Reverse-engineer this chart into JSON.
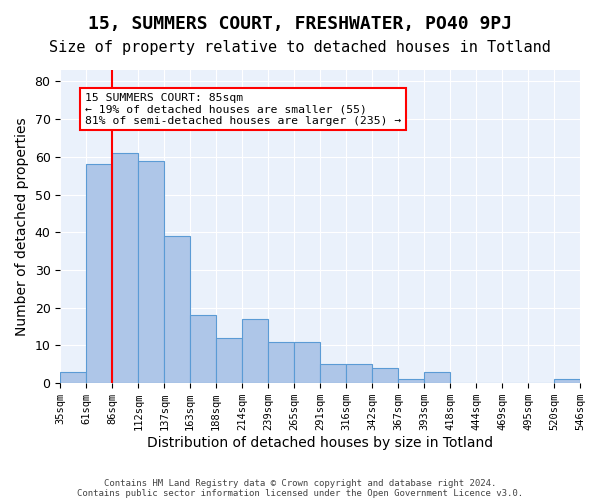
{
  "title1": "15, SUMMERS COURT, FRESHWATER, PO40 9PJ",
  "title2": "Size of property relative to detached houses in Totland",
  "xlabel": "Distribution of detached houses by size in Totland",
  "ylabel": "Number of detached properties",
  "footnote1": "Contains HM Land Registry data © Crown copyright and database right 2024.",
  "footnote2": "Contains public sector information licensed under the Open Government Licence v3.0.",
  "bin_labels": [
    "35sqm",
    "61sqm",
    "86sqm",
    "112sqm",
    "137sqm",
    "163sqm",
    "188sqm",
    "214sqm",
    "239sqm",
    "265sqm",
    "291sqm",
    "316sqm",
    "342sqm",
    "367sqm",
    "393sqm",
    "418sqm",
    "444sqm",
    "469sqm",
    "495sqm",
    "520sqm",
    "546sqm"
  ],
  "values": [
    3,
    58,
    61,
    59,
    39,
    18,
    12,
    17,
    11,
    11,
    5,
    5,
    4,
    1,
    3,
    0,
    0,
    0,
    0,
    1
  ],
  "bar_color": "#aec6e8",
  "bar_edge_color": "#5b9bd5",
  "red_line_x": 1.5,
  "annotation_text": "15 SUMMERS COURT: 85sqm\n← 19% of detached houses are smaller (55)\n81% of semi-detached houses are larger (235) →",
  "ylim": [
    0,
    83
  ],
  "yticks": [
    0,
    10,
    20,
    30,
    40,
    50,
    60,
    70,
    80
  ],
  "background_color": "#eaf1fb",
  "grid_color": "#ffffff",
  "title1_fontsize": 13,
  "title2_fontsize": 11,
  "xlabel_fontsize": 10,
  "ylabel_fontsize": 10
}
